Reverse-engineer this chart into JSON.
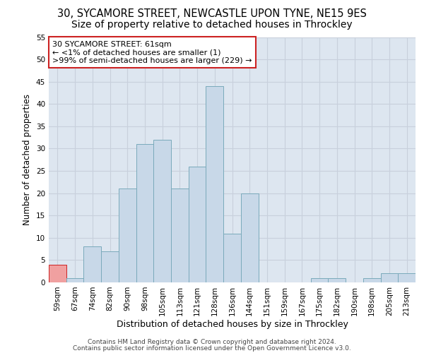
{
  "title1": "30, SYCAMORE STREET, NEWCASTLE UPON TYNE, NE15 9ES",
  "title2": "Size of property relative to detached houses in Throckley",
  "xlabel": "Distribution of detached houses by size in Throckley",
  "ylabel": "Number of detached properties",
  "categories": [
    "59sqm",
    "67sqm",
    "74sqm",
    "82sqm",
    "90sqm",
    "98sqm",
    "105sqm",
    "113sqm",
    "121sqm",
    "128sqm",
    "136sqm",
    "144sqm",
    "151sqm",
    "159sqm",
    "167sqm",
    "175sqm",
    "182sqm",
    "190sqm",
    "198sqm",
    "205sqm",
    "213sqm"
  ],
  "values": [
    4,
    1,
    8,
    7,
    21,
    31,
    32,
    21,
    26,
    44,
    11,
    20,
    0,
    0,
    0,
    1,
    1,
    0,
    1,
    2,
    2
  ],
  "bar_color": "#c8d8e8",
  "bar_edge_color": "#7aaabb",
  "highlight_bar_index": 0,
  "highlight_bar_color": "#f0a0a0",
  "highlight_bar_edge_color": "#cc2222",
  "annotation_line1": "30 SYCAMORE STREET: 61sqm",
  "annotation_line2": "← <1% of detached houses are smaller (1)",
  "annotation_line3": ">99% of semi-detached houses are larger (229) →",
  "annotation_box_facecolor": "white",
  "annotation_box_edgecolor": "#cc2222",
  "ylim": [
    0,
    55
  ],
  "yticks": [
    0,
    5,
    10,
    15,
    20,
    25,
    30,
    35,
    40,
    45,
    50,
    55
  ],
  "grid_color": "#c8d0dc",
  "background_color": "#dde6f0",
  "footer_line1": "Contains HM Land Registry data © Crown copyright and database right 2024.",
  "footer_line2": "Contains public sector information licensed under the Open Government Licence v3.0.",
  "title1_fontsize": 10.5,
  "title2_fontsize": 10,
  "xlabel_fontsize": 9,
  "ylabel_fontsize": 8.5,
  "tick_fontsize": 7.5,
  "annotation_fontsize": 8,
  "footer_fontsize": 6.5
}
